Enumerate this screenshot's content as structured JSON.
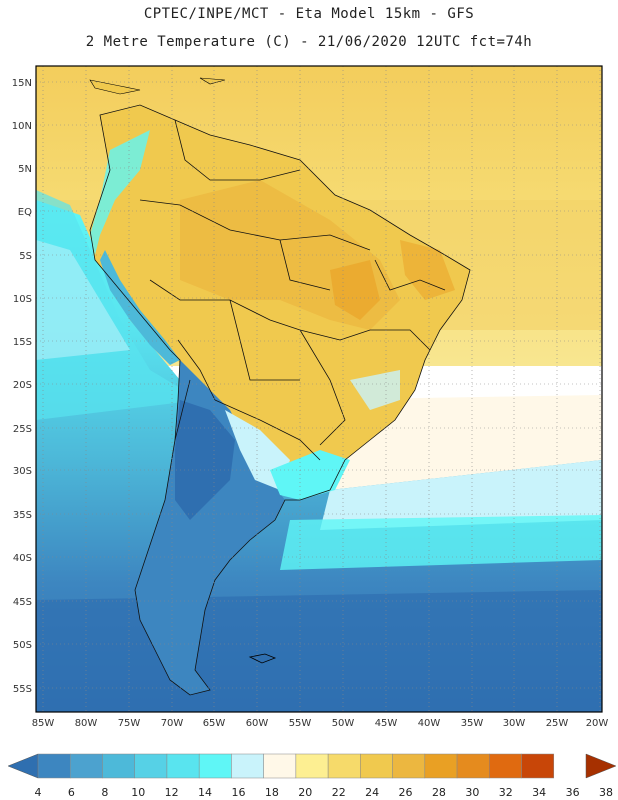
{
  "header": {
    "line1": "CPTEC/INPE/MCT -  Eta Model 15km - GFS",
    "line2": "2 Metre Temperature (C) - 21/06/2020 12UTC fct=74h"
  },
  "map": {
    "lat_labels": [
      "15N",
      "10N",
      "5N",
      "EQ",
      "5S",
      "10S",
      "15S",
      "20S",
      "25S",
      "30S",
      "35S",
      "40S",
      "45S",
      "50S",
      "55S"
    ],
    "lon_labels": [
      "85W",
      "80W",
      "75W",
      "70W",
      "65W",
      "60W",
      "55W",
      "50W",
      "45W",
      "40W",
      "35W",
      "30W",
      "25W",
      "20W"
    ]
  },
  "colorbar": {
    "labels": [
      "4",
      "6",
      "8",
      "10",
      "12",
      "14",
      "16",
      "18",
      "20",
      "22",
      "24",
      "26",
      "28",
      "30",
      "32",
      "34",
      "36",
      "38"
    ],
    "colors": [
      "#2f6fb0",
      "#3d86c0",
      "#4ca2cf",
      "#4db9d9",
      "#56d1e6",
      "#59e4ef",
      "#5ff6f6",
      "#c9f3fb",
      "#fff8e8",
      "#fdef92",
      "#f6da6a",
      "#f0c94e",
      "#ecb740",
      "#e9a024",
      "#e58b1e",
      "#e06a10",
      "#c84608",
      "#a63000"
    ]
  }
}
